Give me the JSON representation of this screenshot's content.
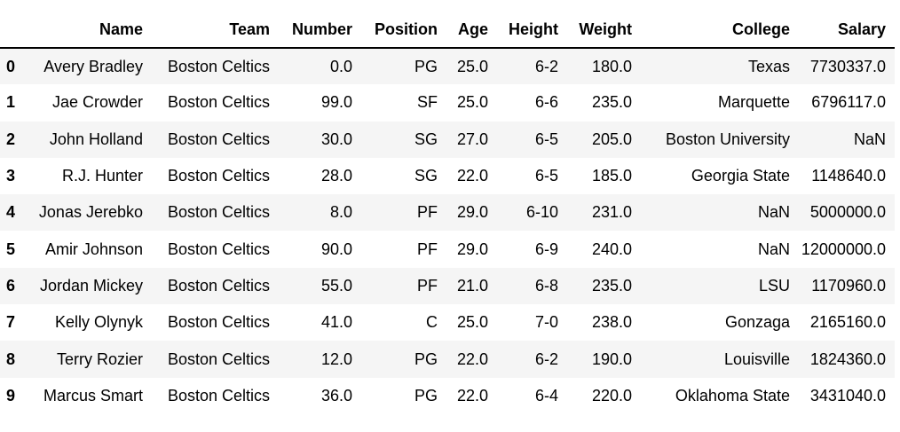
{
  "table": {
    "columns": [
      "Name",
      "Team",
      "Number",
      "Position",
      "Age",
      "Height",
      "Weight",
      "College",
      "Salary"
    ],
    "rows": [
      {
        "index": "0",
        "cells": [
          "Avery Bradley",
          "Boston Celtics",
          "0.0",
          "PG",
          "25.0",
          "6-2",
          "180.0",
          "Texas",
          "7730337.0"
        ]
      },
      {
        "index": "1",
        "cells": [
          "Jae Crowder",
          "Boston Celtics",
          "99.0",
          "SF",
          "25.0",
          "6-6",
          "235.0",
          "Marquette",
          "6796117.0"
        ]
      },
      {
        "index": "2",
        "cells": [
          "John Holland",
          "Boston Celtics",
          "30.0",
          "SG",
          "27.0",
          "6-5",
          "205.0",
          "Boston University",
          "NaN"
        ]
      },
      {
        "index": "3",
        "cells": [
          "R.J. Hunter",
          "Boston Celtics",
          "28.0",
          "SG",
          "22.0",
          "6-5",
          "185.0",
          "Georgia State",
          "1148640.0"
        ]
      },
      {
        "index": "4",
        "cells": [
          "Jonas Jerebko",
          "Boston Celtics",
          "8.0",
          "PF",
          "29.0",
          "6-10",
          "231.0",
          "NaN",
          "5000000.0"
        ]
      },
      {
        "index": "5",
        "cells": [
          "Amir Johnson",
          "Boston Celtics",
          "90.0",
          "PF",
          "29.0",
          "6-9",
          "240.0",
          "NaN",
          "12000000.0"
        ]
      },
      {
        "index": "6",
        "cells": [
          "Jordan Mickey",
          "Boston Celtics",
          "55.0",
          "PF",
          "21.0",
          "6-8",
          "235.0",
          "LSU",
          "1170960.0"
        ]
      },
      {
        "index": "7",
        "cells": [
          "Kelly Olynyk",
          "Boston Celtics",
          "41.0",
          "C",
          "25.0",
          "7-0",
          "238.0",
          "Gonzaga",
          "2165160.0"
        ]
      },
      {
        "index": "8",
        "cells": [
          "Terry Rozier",
          "Boston Celtics",
          "12.0",
          "PG",
          "22.0",
          "6-2",
          "190.0",
          "Louisville",
          "1824360.0"
        ]
      },
      {
        "index": "9",
        "cells": [
          "Marcus Smart",
          "Boston Celtics",
          "36.0",
          "PG",
          "22.0",
          "6-4",
          "220.0",
          "Oklahoma State",
          "3431040.0"
        ]
      }
    ]
  }
}
